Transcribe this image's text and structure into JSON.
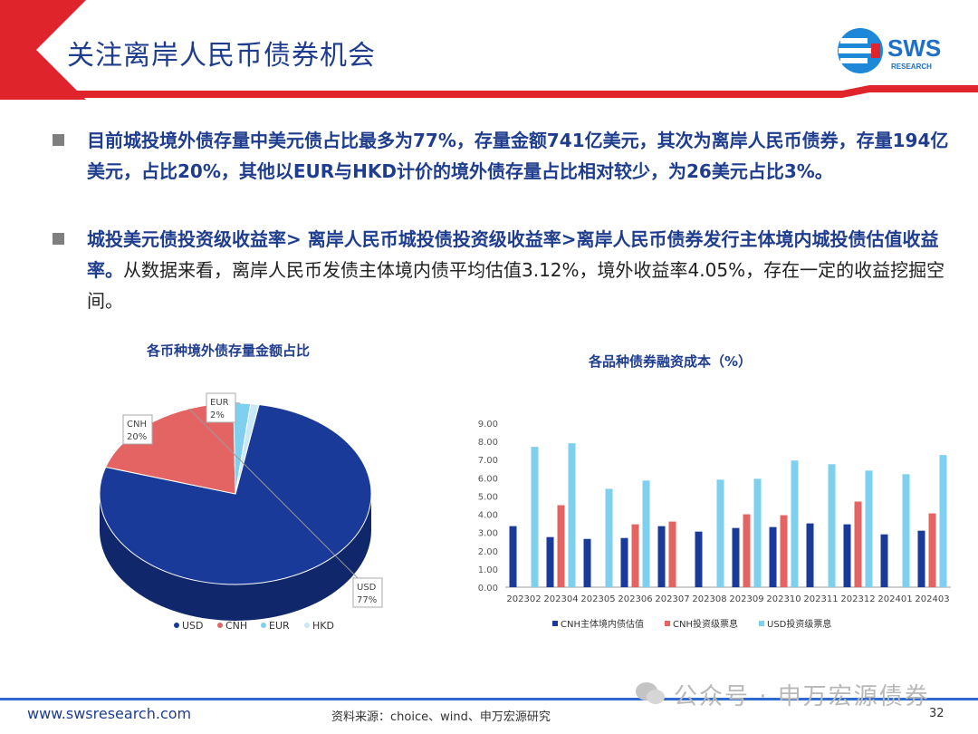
{
  "header": {
    "title": "关注离岸人民币债券机会",
    "logo_text": "SWS",
    "logo_sub": "RESEARCH"
  },
  "bullets": [
    {
      "bold": "目前城投境外债存量中美元债占比最多为77%，存量金额741亿美元，其次为离岸人民币债券，存量194亿美元，占比20%，其他以EUR与HKD计价的境外债存量占比相对较少，为26美元占比3%。",
      "normal": ""
    },
    {
      "bold": "城投美元债投资级收益率>  离岸人民币城投债投资级收益率>离岸人民币债券发行主体境内城投债估值收益率。",
      "normal": "从数据来看，离岸人民币发债主体境内债平均估值3.12%，境外收益率4.05%，存在一定的收益挖掘空间。"
    }
  ],
  "chart_data": [
    {
      "type": "pie",
      "title": "各币种境外债存量金额占比",
      "categories": [
        "USD",
        "CNH",
        "EUR",
        "HKD"
      ],
      "values": [
        77,
        20,
        2,
        1
      ],
      "slice_labels": [
        {
          "name": "USD",
          "value": "77%"
        },
        {
          "name": "CNH",
          "value": "20%"
        },
        {
          "name": "EUR",
          "value": "2%"
        }
      ],
      "colors": [
        "#1a3a9a",
        "#e46464",
        "#7fd0ef",
        "#c9e8f5"
      ],
      "legend_position": "bottom"
    },
    {
      "type": "bar",
      "title": "各品种债券融资成本（%）",
      "categories": [
        "202302",
        "202304",
        "202305",
        "202306",
        "202307",
        "202308",
        "202309",
        "202310",
        "202311",
        "202312",
        "202401",
        "202403"
      ],
      "ylim": [
        0,
        9
      ],
      "yticks": [
        "0.00",
        "1.00",
        "2.00",
        "3.00",
        "4.00",
        "5.00",
        "6.00",
        "7.00",
        "8.00",
        "9.00"
      ],
      "series": [
        {
          "name": "CNH主体境内债估值",
          "color": "#1a3a9a",
          "values": [
            3.35,
            2.75,
            2.65,
            2.7,
            3.35,
            3.05,
            3.25,
            3.3,
            3.5,
            3.45,
            2.9,
            3.1
          ]
        },
        {
          "name": "CNH投资级票息",
          "color": "#e46464",
          "values": [
            null,
            4.5,
            null,
            3.45,
            3.6,
            null,
            4.0,
            3.95,
            null,
            4.7,
            null,
            4.05
          ]
        },
        {
          "name": "USD投资级票息",
          "color": "#7fd0ef",
          "values": [
            7.7,
            7.9,
            5.4,
            5.85,
            null,
            5.9,
            5.95,
            6.95,
            6.75,
            6.4,
            6.2,
            7.25
          ]
        }
      ],
      "grid": false,
      "legend_position": "bottom"
    }
  ],
  "footer": {
    "url": "www.swsresearch.com",
    "source": "资料来源：choice、wind、申万宏源研究",
    "page": "32",
    "watermark": "公众号 · 申万宏源债券"
  }
}
